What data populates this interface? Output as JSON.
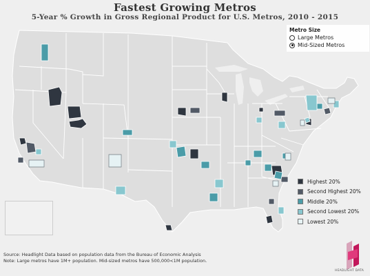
{
  "title": "Fastest Growing Metros",
  "subtitle": "5-Year % Growth in Gross Regional Product for U.S. Metros, 2010 - 2015",
  "size_filter": {
    "header": "Metro Size",
    "options": [
      {
        "label": "Large Metros",
        "selected": false
      },
      {
        "label": "Mid-Sized Metros",
        "selected": true
      }
    ]
  },
  "legend": {
    "items": [
      {
        "label": "Highest 20%",
        "color": "#2f3640"
      },
      {
        "label": "Second Highest 20%",
        "color": "#525a66"
      },
      {
        "label": "Middle 20%",
        "color": "#4b9ca8"
      },
      {
        "label": "Second Lowest 20%",
        "color": "#88c7cf"
      },
      {
        "label": "Lowest 20%",
        "color": "#e6f2f4"
      }
    ]
  },
  "source": {
    "line1": "Source: Headlight Data based on population data from the Bureau of Economic Analysis",
    "line2": "Note: Large metros have 1M+ population. Mid-sized metros have 500,000<1M population."
  },
  "logo": {
    "text": "HEADLIGHT DATA"
  },
  "colors": {
    "land": "#dedede",
    "background": "#efefef",
    "border": "#ffffff"
  }
}
